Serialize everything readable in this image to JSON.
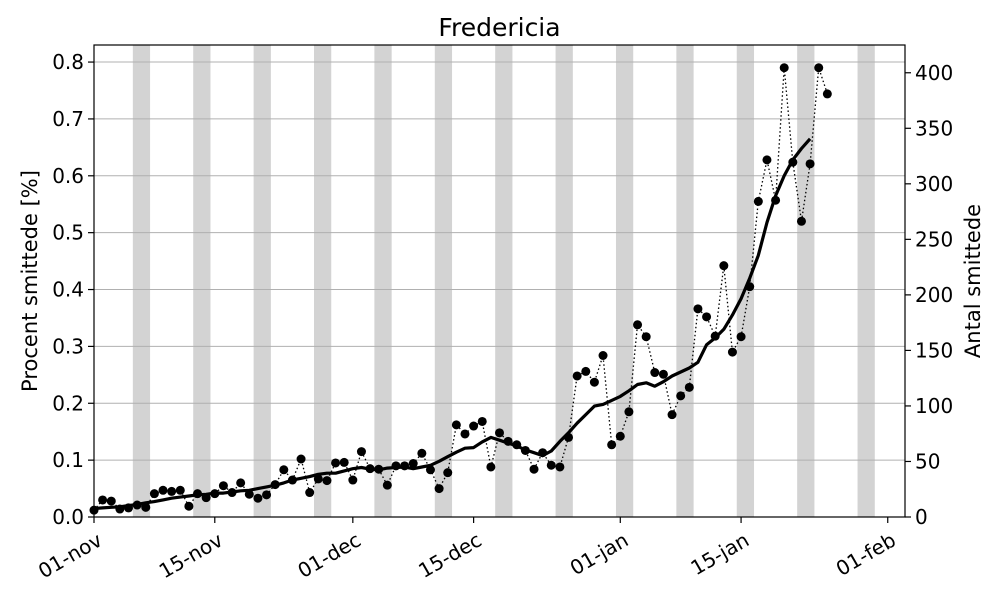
{
  "chart_data": {
    "type": "line",
    "title": "Fredericia",
    "xlabel": "",
    "ylabel_left": "Procent smittede [%]",
    "ylabel_right": "Antal smittede",
    "x_ticks": [
      "01-nov",
      "15-nov",
      "01-dec",
      "15-dec",
      "01-jan",
      "15-jan",
      "01-feb"
    ],
    "x_tick_day_index": [
      0,
      14,
      30,
      44,
      61,
      75,
      92
    ],
    "xlim_day_index": [
      0,
      94
    ],
    "ylim_left": [
      0,
      0.83
    ],
    "ylim_right": [
      0,
      425
    ],
    "y_ticks_left": [
      "0.0",
      "0.1",
      "0.2",
      "0.3",
      "0.4",
      "0.5",
      "0.6",
      "0.7",
      "0.8"
    ],
    "y_ticks_right": [
      "0",
      "50",
      "100",
      "150",
      "200",
      "250",
      "300",
      "350",
      "400"
    ],
    "grid": true,
    "weekend_shading_start_day_index": [
      5,
      12,
      19,
      26,
      33,
      40,
      47,
      54,
      61,
      68,
      75,
      82,
      89
    ],
    "colors": {
      "daily": "#000000",
      "average": "#000000",
      "weekend": "#d3d3d3",
      "grid": "#b0b0b0"
    },
    "series": [
      {
        "values": [
          0.012,
          0.03,
          0.028,
          0.014,
          0.016,
          0.021,
          0.017,
          0.041,
          0.047,
          0.045,
          0.047,
          0.019,
          0.041,
          0.034,
          0.041,
          0.055,
          0.043,
          0.06,
          0.04,
          0.033,
          0.039,
          0.057,
          0.083,
          0.065,
          0.102,
          0.043,
          0.067,
          0.064,
          0.095,
          0.096,
          0.065,
          0.115,
          0.085,
          0.084,
          0.056,
          0.09,
          0.09,
          0.094,
          0.112,
          0.083,
          0.05,
          0.078,
          0.162,
          0.146,
          0.16,
          0.168,
          0.088,
          0.148,
          0.133,
          0.127,
          0.117,
          0.084,
          0.113,
          0.091,
          0.088,
          0.14,
          0.248,
          0.256,
          0.237,
          0.284,
          0.127,
          0.142,
          0.185,
          0.338,
          0.317,
          0.254,
          0.251,
          0.18,
          0.213,
          0.228,
          0.366,
          0.352,
          0.318,
          0.442,
          0.29,
          0.317,
          0.405,
          0.555,
          0.628,
          0.557,
          0.79,
          0.624,
          0.52,
          0.621,
          0.79,
          0.744
        ]
      },
      {
        "values": [
          0.015,
          0.016,
          0.017,
          0.018,
          0.02,
          0.022,
          0.025,
          0.027,
          0.03,
          0.033,
          0.035,
          0.037,
          0.039,
          0.04,
          0.042,
          0.042,
          0.044,
          0.046,
          0.047,
          0.05,
          0.053,
          0.056,
          0.06,
          0.065,
          0.068,
          0.071,
          0.075,
          0.077,
          0.077,
          0.081,
          0.085,
          0.087,
          0.084,
          0.083,
          0.086,
          0.087,
          0.088,
          0.085,
          0.088,
          0.091,
          0.098,
          0.106,
          0.114,
          0.121,
          0.122,
          0.132,
          0.14,
          0.135,
          0.13,
          0.125,
          0.118,
          0.113,
          0.108,
          0.116,
          0.133,
          0.148,
          0.165,
          0.18,
          0.195,
          0.198,
          0.205,
          0.212,
          0.222,
          0.233,
          0.236,
          0.23,
          0.238,
          0.248,
          0.255,
          0.262,
          0.272,
          0.303,
          0.315,
          0.33,
          0.355,
          0.384,
          0.42,
          0.46,
          0.518,
          0.565,
          0.6,
          0.628,
          0.648,
          0.665
        ]
      }
    ]
  }
}
